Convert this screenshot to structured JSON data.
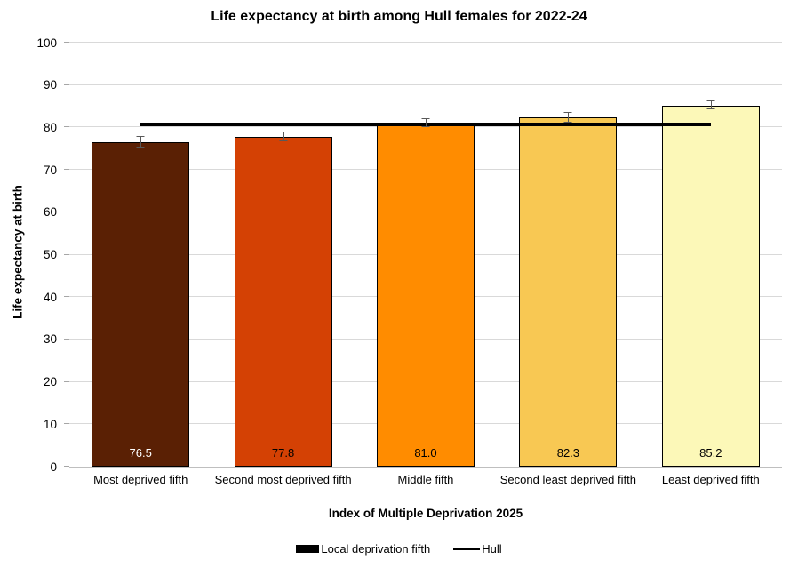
{
  "chart_data": {
    "type": "bar",
    "title": "Life expectancy at birth among Hull females for 2022-24",
    "xlabel": "Index of Multiple Deprivation 2025",
    "ylabel": "Life expectancy at birth",
    "ylim": [
      0,
      100
    ],
    "yticks": [
      0,
      10,
      20,
      30,
      40,
      50,
      60,
      70,
      80,
      90,
      100
    ],
    "grid": true,
    "categories": [
      "Most deprived fifth",
      "Second most deprived fifth",
      "Middle fifth",
      "Second least deprived fifth",
      "Least deprived fifth"
    ],
    "series": [
      {
        "name": "Local deprivation fifth",
        "values": [
          76.5,
          77.8,
          81.0,
          82.3,
          85.2
        ],
        "value_labels": [
          "76.5",
          "77.8",
          "81.0",
          "82.3",
          "85.2"
        ],
        "bar_colors": [
          "#5A2004",
          "#D44104",
          "#FF8C00",
          "#F8C853",
          "#FCF8B8"
        ],
        "label_colors": [
          "#FFFFFF",
          "#000000",
          "#000000",
          "#000000",
          "#000000"
        ],
        "error_bars_approx": [
          1.2,
          1.0,
          1.0,
          1.2,
          1.0
        ]
      },
      {
        "name": "Hull",
        "type": "reference-line",
        "value": 80.7,
        "color": "#000000"
      }
    ],
    "legend": [
      {
        "label": "Local deprivation fifth",
        "swatch": "bar",
        "color": "#000000"
      },
      {
        "label": "Hull",
        "swatch": "line",
        "color": "#000000"
      }
    ],
    "legend_position": "bottom",
    "colors": {
      "gridline": "#D9D9D9",
      "axis_line": "#BFBFBF",
      "tick_mark": "#A6A6A6",
      "error_bar": "#595959",
      "bar_border": "#000000",
      "background": "#FFFFFF",
      "text": "#000000"
    }
  }
}
